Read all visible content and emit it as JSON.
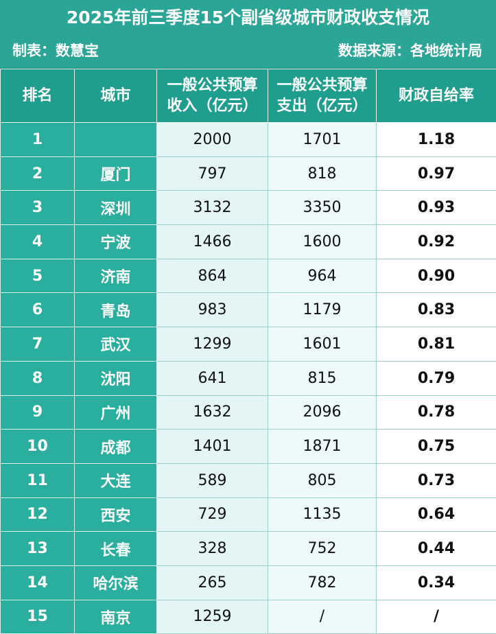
{
  "header": {
    "title": "2025年前三季度15个副省级城市财政收支情况",
    "maker": "制表：数慧宝",
    "source": "数据来源：各地统计局"
  },
  "table": {
    "columns": [
      "排名",
      "城市",
      "一般公共预算收入（亿元）",
      "一般公共预算支出（亿元）",
      "财政自给率"
    ],
    "rows": [
      [
        "1",
        null,
        "2000",
        "1701",
        "1.18"
      ],
      [
        "2",
        "厦门",
        "797",
        "818",
        "0.97"
      ],
      [
        "3",
        "深圳",
        "3132",
        "3350",
        "0.93"
      ],
      [
        "4",
        "宁波",
        "1466",
        "1600",
        "0.92"
      ],
      [
        "5",
        "济南",
        "864",
        "964",
        "0.90"
      ],
      [
        "6",
        "青岛",
        "983",
        "1179",
        "0.83"
      ],
      [
        "7",
        "武汉",
        "1299",
        "1601",
        "0.81"
      ],
      [
        "8",
        "沈阳",
        "641",
        "815",
        "0.79"
      ],
      [
        "9",
        "广州",
        "1632",
        "2096",
        "0.78"
      ],
      [
        "10",
        "成都",
        "1401",
        "1871",
        "0.75"
      ],
      [
        "11",
        "大连",
        "589",
        "805",
        "0.73"
      ],
      [
        "12",
        "西安",
        "729",
        "1135",
        "0.64"
      ],
      [
        "13",
        "长春",
        "328",
        "752",
        "0.44"
      ],
      [
        "14",
        "哈尔滨",
        "265",
        "782",
        "0.34"
      ],
      [
        "15",
        "南京",
        "1259",
        "/",
        "/"
      ]
    ]
  }
}
